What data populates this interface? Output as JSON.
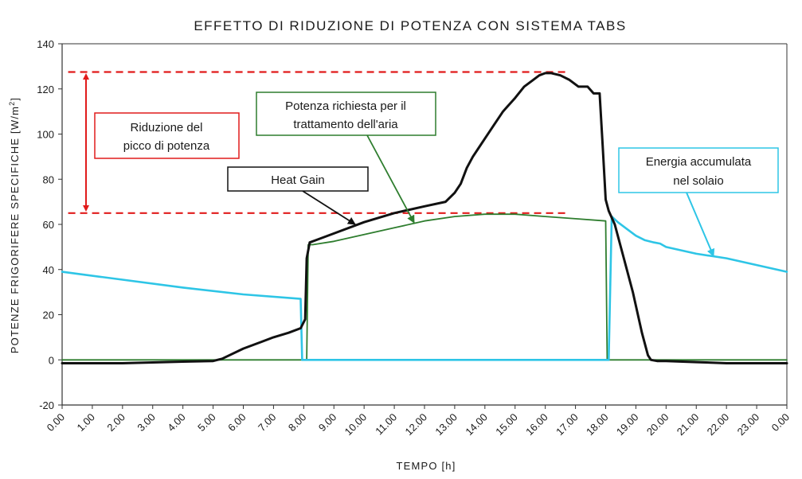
{
  "chart_data": {
    "type": "line",
    "title": "EFFETTO DI RIDUZIONE DI POTENZA CON SISTEMA TABS",
    "xlabel": "TEMPO [h]",
    "ylabel": "POTENZE FRIGORIFERE SPECIFICHE [W/m",
    "ylabel_sup": "2",
    "ylabel_close": "]",
    "xlim": [
      0,
      24
    ],
    "ylim": [
      -20,
      140
    ],
    "yticks": [
      -20,
      0,
      20,
      40,
      60,
      80,
      100,
      120,
      140
    ],
    "ytick_labels": [
      "-20",
      "0",
      "20",
      "40",
      "60",
      "80",
      "100",
      "120",
      "140"
    ],
    "xticks": [
      0,
      1,
      2,
      3,
      4,
      5,
      6,
      7,
      8,
      9,
      10,
      11,
      12,
      13,
      14,
      15,
      16,
      17,
      18,
      19,
      20,
      21,
      22,
      23,
      24
    ],
    "xtick_labels": [
      "0.00",
      "1.00",
      "2.00",
      "3.00",
      "4.00",
      "5.00",
      "6.00",
      "7.00",
      "8.00",
      "9.00",
      "10.00",
      "11.00",
      "12.00",
      "13.00",
      "14.00",
      "15.00",
      "16.00",
      "17.00",
      "18.00",
      "19.00",
      "20.00",
      "21.00",
      "22.00",
      "23.00",
      "0.00"
    ],
    "grid": false,
    "series": [
      {
        "key": "heat-gain",
        "color": "#111111",
        "x": [
          0,
          2,
          4,
          5,
          5.3,
          6,
          6.6,
          7,
          7.5,
          7.9,
          8.05,
          8.1,
          8.2,
          8.4,
          9,
          10,
          11,
          12,
          12.7,
          13,
          13.2,
          13.4,
          13.6,
          13.8,
          14,
          14.3,
          14.6,
          15,
          15.3,
          15.6,
          15.8,
          16,
          16.2,
          16.5,
          16.8,
          17.1,
          17.4,
          17.6,
          17.8,
          17.9,
          18.0,
          18.1,
          18.3,
          18.6,
          18.9,
          19.2,
          19.4,
          19.5,
          19.7,
          20,
          21,
          22,
          23,
          24
        ],
        "y": [
          -1.5,
          -1.5,
          -0.8,
          -0.5,
          0.5,
          5,
          8,
          10,
          12,
          14,
          18,
          45,
          52,
          53,
          56,
          61,
          65,
          68,
          70,
          74,
          78,
          85,
          90,
          94,
          98,
          104,
          110,
          116,
          121,
          124,
          126,
          127,
          127,
          126,
          124,
          121,
          121,
          118,
          118,
          95,
          71,
          66,
          60,
          45,
          30,
          12,
          2,
          0,
          -0.5,
          -0.5,
          -1,
          -1.5,
          -1.5,
          -1.5
        ]
      },
      {
        "key": "air-treatment",
        "color": "#2e7d2e",
        "x": [
          0,
          8.1,
          8.15,
          8.3,
          9,
          10,
          11,
          12,
          13,
          14,
          15,
          16,
          17,
          18.0,
          18.05,
          24
        ],
        "y": [
          0,
          0,
          51,
          51,
          52.5,
          55.5,
          58.5,
          61.5,
          63.5,
          64.5,
          64.5,
          63.5,
          62.5,
          61.5,
          0,
          0
        ]
      },
      {
        "key": "stored-energy",
        "color": "#2ec5e6",
        "x": [
          0,
          2,
          4,
          6,
          7.9,
          7.95,
          8.1,
          18.1,
          18.2,
          18.4,
          18.7,
          19,
          19.3,
          19.6,
          19.8,
          20,
          21,
          22,
          23,
          24
        ],
        "y": [
          39,
          35.5,
          32,
          29,
          27,
          0,
          0,
          0,
          63.5,
          61,
          58,
          55,
          53,
          52,
          51.5,
          50,
          47,
          45,
          42,
          39
        ]
      }
    ],
    "reference_lines": [
      {
        "key": "peak-line",
        "y": 127.5,
        "x_from": 0.2,
        "x_to": 16.8,
        "color": "#e11b1b"
      },
      {
        "key": "reduced-line",
        "y": 65,
        "x_from": 0.2,
        "x_to": 16.8,
        "color": "#e11b1b"
      }
    ],
    "annotations": [
      {
        "key": "riduzione",
        "lines": [
          "Riduzione del",
          "picco di potenza"
        ],
        "border": "#e11b1b"
      },
      {
        "key": "heat-gain",
        "lines": [
          "Heat Gain"
        ],
        "border": "#111111"
      },
      {
        "key": "air",
        "lines": [
          "Potenza richiesta per il",
          "trattamento dell'aria"
        ],
        "border": "#2e7d2e"
      },
      {
        "key": "energy",
        "lines": [
          "Energia accumulata",
          "nel solaio"
        ],
        "border": "#2ec5e6"
      }
    ]
  }
}
